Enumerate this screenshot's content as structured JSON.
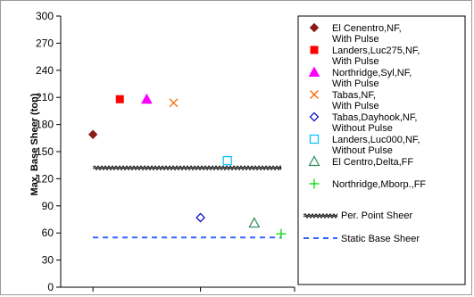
{
  "chart_data": {
    "type": "scatter",
    "title": "",
    "xlabel": "",
    "ylabel": "Max. Base Sheer (ton)",
    "ylim": [
      0,
      300
    ],
    "yticks": [
      0,
      30,
      60,
      90,
      120,
      150,
      180,
      210,
      240,
      270,
      300
    ],
    "grid": false,
    "legend_position": "right",
    "series": [
      {
        "name_lines": [
          "El Cenentro,NF,",
          "With Pulse"
        ],
        "marker": "diamond-filled",
        "color": "#8B1A1A",
        "x": 1,
        "y": 169
      },
      {
        "name_lines": [
          "Landers,Luc275,NF,",
          "With Pulse"
        ],
        "marker": "square-filled",
        "color": "#FF0000",
        "x": 2,
        "y": 208
      },
      {
        "name_lines": [
          "Northridge,Syl,NF,",
          "With Pulse"
        ],
        "marker": "triangle-filled",
        "color": "#FF00FF",
        "x": 3,
        "y": 208
      },
      {
        "name_lines": [
          "Tabas,NF,",
          "With Pulse"
        ],
        "marker": "x",
        "color": "#FF6600",
        "x": 4,
        "y": 204
      },
      {
        "name_lines": [
          "Tabas,Dayhook,NF,",
          "Without Pulse"
        ],
        "marker": "diamond-open",
        "color": "#0000CC",
        "x": 5,
        "y": 77
      },
      {
        "name_lines": [
          "Landers,Luc000,NF,",
          "Without Pulse"
        ],
        "marker": "square-open",
        "color": "#00BFFF",
        "x": 6,
        "y": 140
      },
      {
        "name_lines": [
          "El Centro,Delta,FF"
        ],
        "marker": "triangle-open",
        "color": "#2E8B57",
        "x": 7,
        "y": 71
      },
      {
        "name_lines": [
          "Northridge,Mborp.,FF"
        ],
        "marker": "plus",
        "color": "#00DD00",
        "x": 8,
        "y": 59
      }
    ],
    "reference_lines": [
      {
        "name": "Per. Point Sheer",
        "style": "wavy",
        "color": "#000000",
        "y": 133,
        "x_from": 0,
        "x_to": 8
      },
      {
        "name": "Static Base Sheer",
        "style": "dashed",
        "color": "#3366FF",
        "y": 55,
        "x_from": 0,
        "x_to": 8
      }
    ],
    "xlim": [
      -0.2,
      8.5
    ]
  }
}
